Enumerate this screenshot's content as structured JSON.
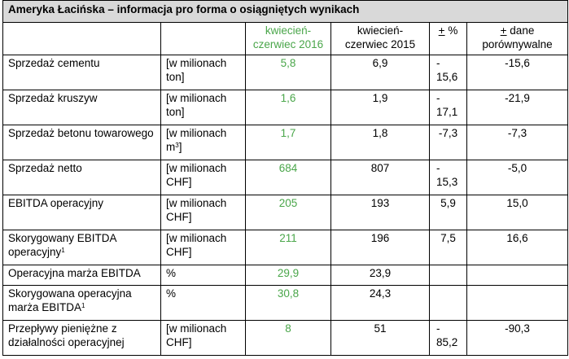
{
  "title": "Ameryka Łacińska – informacja pro forma o osiągniętych wynikach",
  "header": {
    "col_current": "kwiecień-czerwiec 2016",
    "col_prev": "kwiecień-czerwiec 2015",
    "col_pct_sign": "+",
    "col_pct_text": " %",
    "col_comp_sign": "+",
    "col_comp_text": " dane porównywalne"
  },
  "rows": [
    {
      "label": "Sprzedaż cementu",
      "unit": "[w milionach ton]",
      "current": "5,8",
      "previous": "6,9",
      "pct": "-15,6",
      "comparable": "-15,6"
    },
    {
      "label": "Sprzedaż kruszyw",
      "unit": "[w milionach ton]",
      "current": "1,6",
      "previous": "1,9",
      "pct": "-17,1",
      "comparable": "-21,9"
    },
    {
      "label": "Sprzedaż betonu towarowego",
      "unit": "[w milionach m",
      "unit_sup": "3",
      "unit_end": "]",
      "current": "1,7",
      "previous": "1,8",
      "pct": "-7,3",
      "comparable": "-7,3"
    },
    {
      "label": "Sprzedaż netto",
      "unit": "[w milionach CHF]",
      "current": "684",
      "previous": "807",
      "pct": "-15,3",
      "comparable": "-5,0"
    },
    {
      "label": "EBITDA operacyjny",
      "unit": "[w milionach CHF]",
      "current": "205",
      "previous": "193",
      "pct": "5,9",
      "comparable": "15,0"
    },
    {
      "label": "Skorygowany EBITDA operacyjny",
      "label_sup": "1",
      "unit": "[w milionach CHF]",
      "current": "211",
      "previous": "196",
      "pct": "7,5",
      "comparable": "16,6"
    },
    {
      "label": "Operacyjna marża EBITDA",
      "unit": "%",
      "current": "29,9",
      "previous": "23,9",
      "pct": "",
      "comparable": ""
    },
    {
      "label": "Skorygowana operacyjna marża EBITDA",
      "label_sup": "1",
      "unit": "%",
      "current": "30,8",
      "previous": "24,3",
      "pct": "",
      "comparable": ""
    },
    {
      "label": "Przepływy pieniężne z działalności operacyjnej",
      "unit": "[w milionach CHF]",
      "current": "8",
      "previous": "51",
      "pct": "-85,2",
      "comparable": "-90,3"
    }
  ],
  "colors": {
    "highlight": "#4aa64a",
    "title_bg": "#d9d9d9"
  }
}
